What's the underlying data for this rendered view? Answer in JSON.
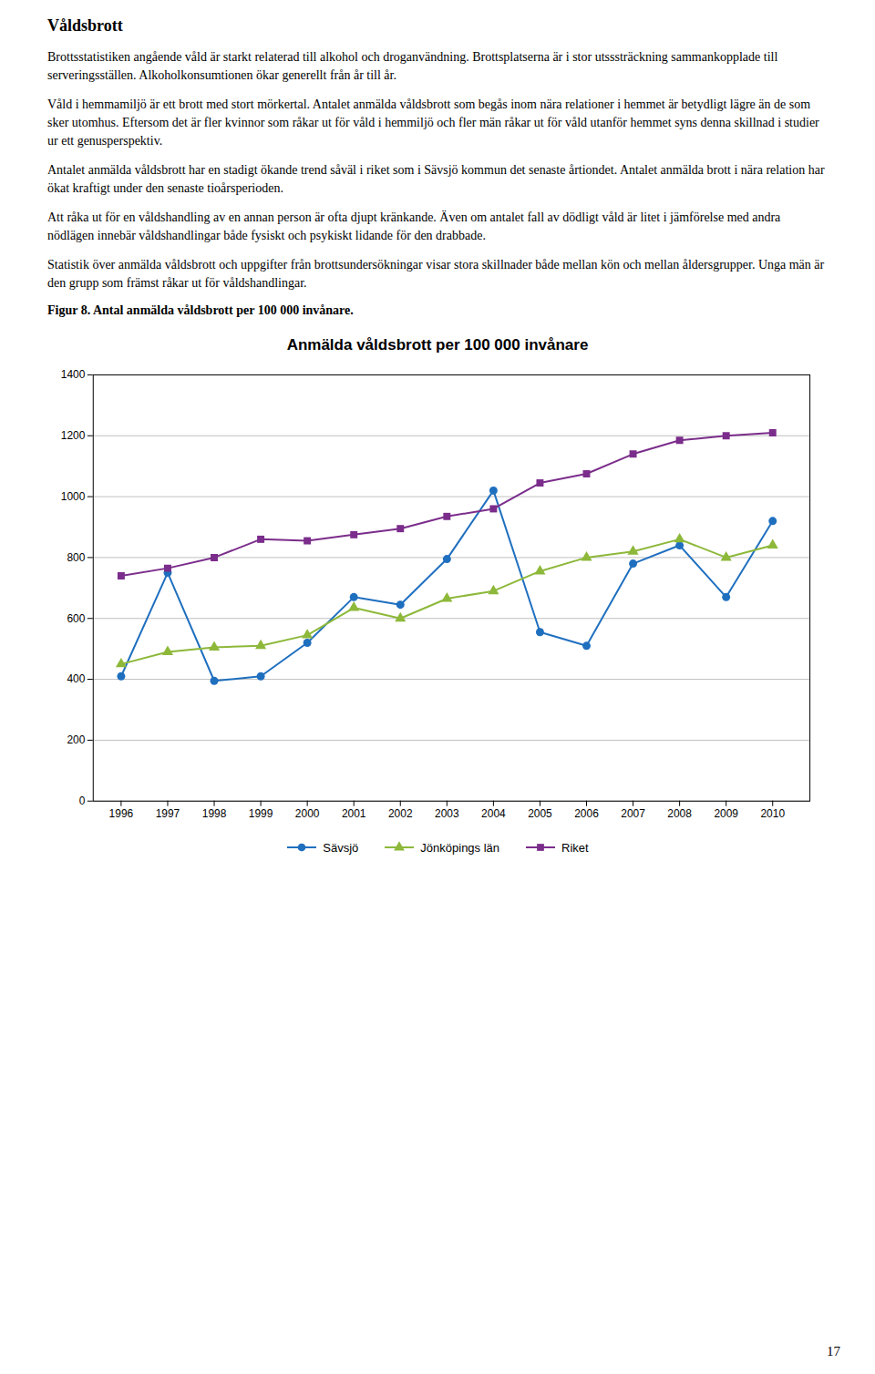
{
  "heading": "Våldsbrott",
  "paragraphs": [
    "Brottsstatistiken angående våld är starkt relaterad till alkohol och droganvändning. Brottsplatserna är i stor utsssträckning sammankopplade till serveringsställen. Alkoholkonsumtionen ökar generellt från år till år.",
    "Våld i hemmamiljö är ett brott med stort mörkertal. Antalet anmälda våldsbrott som begås inom nära relationer i hemmet är betydligt lägre än de som sker utomhus. Eftersom det är fler kvinnor som råkar ut för våld i hemmiljö och fler män råkar ut för våld utanför hemmet syns denna skillnad i studier ur ett genusperspektiv.",
    "Antalet anmälda våldsbrott har en stadigt ökande trend såväl i riket som i Sävsjö kommun det senaste årtiondet. Antalet anmälda brott i nära relation har ökat kraftigt under den senaste tioårsperioden.",
    "Att råka ut för en våldshandling av en annan person är ofta djupt kränkande. Även om antalet fall av dödligt våld är litet i jämförelse med andra nödlägen innebär våldshandlingar både fysiskt och psykiskt lidande för den drabbade.",
    "Statistik över anmälda våldsbrott och uppgifter från brottsundersökningar visar stora skillnader både mellan kön och mellan åldersgrupper. Unga män är den grupp som främst råkar ut för våldshandlingar."
  ],
  "figure_caption": "Figur 8. Antal anmälda våldsbrott per 100 000 invånare.",
  "page_number": "17",
  "chart_data": {
    "type": "line",
    "title": "Anmälda våldsbrott per 100 000 invånare",
    "x": [
      1996,
      1997,
      1998,
      1999,
      2000,
      2001,
      2002,
      2003,
      2004,
      2005,
      2006,
      2007,
      2008,
      2009,
      2010
    ],
    "series": [
      {
        "name": "Sävsjö",
        "color": "#1F6FBF",
        "marker": "circle",
        "values": [
          410,
          750,
          395,
          410,
          520,
          670,
          645,
          795,
          1020,
          555,
          510,
          780,
          840,
          670,
          920
        ]
      },
      {
        "name": "Jönköpings län",
        "color": "#8DB83A",
        "marker": "triangle",
        "values": [
          450,
          490,
          505,
          510,
          545,
          635,
          600,
          665,
          690,
          755,
          800,
          820,
          860,
          800,
          840
        ]
      },
      {
        "name": "Riket",
        "color": "#7B2D8B",
        "marker": "square",
        "values": [
          740,
          765,
          800,
          860,
          855,
          875,
          895,
          935,
          960,
          1045,
          1075,
          1140,
          1185,
          1200,
          1210
        ]
      }
    ],
    "xlim": [
      1995.4,
      2010.8
    ],
    "xticks": [
      1996,
      1997,
      1998,
      1999,
      2000,
      2001,
      2002,
      2003,
      2004,
      2005,
      2006,
      2007,
      2008,
      2009,
      2010
    ],
    "ylim": [
      0,
      1400
    ],
    "yticks": [
      0,
      200,
      400,
      600,
      800,
      1000,
      1200,
      1400
    ],
    "grid": true,
    "legend": "bottom"
  }
}
